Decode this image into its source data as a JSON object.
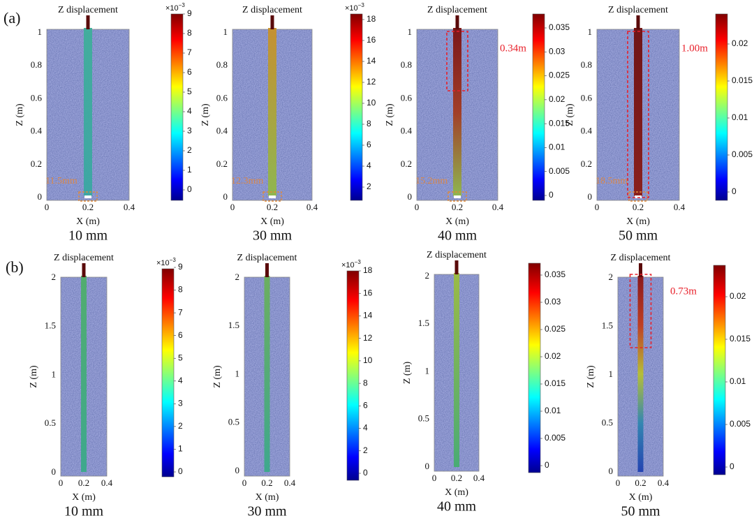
{
  "figure": {
    "rows": [
      {
        "label": "(a)",
        "panels": [
          {
            "title": "Z displacement",
            "y_label": "Z (m)",
            "x_label": "X (m)",
            "caption": "10 mm",
            "y_ticks": [
              "0",
              "0.2",
              "0.4",
              "0.6",
              "0.8",
              "1"
            ],
            "x_ticks": [
              "0",
              "0.2",
              "0.4"
            ],
            "colorbar_scale": {
              "base": "×10",
              "exponent": "−3"
            },
            "colorbar_ticks": [
              "0",
              "1",
              "2",
              "3",
              "4",
              "5",
              "6",
              "7",
              "8",
              "9"
            ],
            "displacement_label": "11.5mm"
          },
          {
            "title": "Z displacement",
            "y_label": "Z (m)",
            "x_label": "X (m)",
            "caption": "30 mm",
            "y_ticks": [
              "0",
              "0.2",
              "0.4",
              "0.6",
              "0.8",
              "1"
            ],
            "x_ticks": [
              "0",
              "0.2",
              "0.4"
            ],
            "colorbar_scale": {
              "base": "×10",
              "exponent": "−3"
            },
            "colorbar_ticks": [
              "2",
              "4",
              "6",
              "8",
              "10",
              "12",
              "14",
              "16",
              "18"
            ],
            "displacement_label": "12.3mm"
          },
          {
            "title": "Z displacement",
            "y_label": "Z (m)",
            "x_label": "X (m)",
            "caption": "40 mm",
            "y_ticks": [
              "0",
              "0.2",
              "0.4",
              "0.6",
              "0.8",
              "1"
            ],
            "x_ticks": [
              "0",
              "0.2",
              "0.4"
            ],
            "colorbar_ticks": [
              "0",
              "0.005",
              "0.01",
              "0.015",
              "0.02",
              "0.025",
              "0.03",
              "0.035"
            ],
            "displacement_label": "15.2mm",
            "zone_label": "0.34m"
          },
          {
            "title": "Z displacement",
            "y_label": "Z (m)",
            "x_label": "X (m)",
            "caption": "50 mm",
            "y_ticks": [
              "0",
              "0.2",
              "0.4",
              "0.6",
              "0.8",
              "1"
            ],
            "x_ticks": [
              "0",
              "0.2",
              "0.4"
            ],
            "colorbar_ticks": [
              "0",
              "0.005",
              "0.01",
              "0.015",
              "0.02"
            ],
            "displacement_label": "18.5mm",
            "zone_label": "1.00m"
          }
        ]
      },
      {
        "label": "(b)",
        "panels": [
          {
            "title": "Z displacement",
            "y_label": "Z (m)",
            "x_label": "X (m)",
            "caption": "10 mm",
            "y_ticks": [
              "0",
              "0.5",
              "1",
              "1.5",
              "2"
            ],
            "x_ticks": [
              "0",
              "0.2",
              "0.4"
            ],
            "colorbar_scale": {
              "base": "×10",
              "exponent": "−3"
            },
            "colorbar_ticks": [
              "0",
              "1",
              "2",
              "3",
              "4",
              "5",
              "6",
              "7",
              "8",
              "9"
            ]
          },
          {
            "title": "Z displacement",
            "y_label": "Z (m)",
            "x_label": "X (m)",
            "caption": "30 mm",
            "y_ticks": [
              "0",
              "0.5",
              "1",
              "1.5",
              "2"
            ],
            "x_ticks": [
              "0",
              "0.2",
              "0.4"
            ],
            "colorbar_scale": {
              "base": "×10",
              "exponent": "−3"
            },
            "colorbar_ticks": [
              "0",
              "2",
              "4",
              "6",
              "8",
              "10",
              "12",
              "14",
              "16",
              "18"
            ]
          },
          {
            "title": "Z displacement",
            "y_label": "Z (m)",
            "x_label": "X (m)",
            "caption": "40 mm",
            "y_ticks": [
              "0",
              "0.5",
              "1",
              "1.5",
              "2"
            ],
            "x_ticks": [
              "0",
              "0.2",
              "0.4"
            ],
            "colorbar_ticks": [
              "0",
              "0.005",
              "0.01",
              "0.015",
              "0.02",
              "0.025",
              "0.03",
              "0.035"
            ]
          },
          {
            "title": "Z displacement",
            "y_label": "Z (m)",
            "x_label": "X (m)",
            "caption": "50 mm",
            "y_ticks": [
              "0",
              "0.5",
              "1",
              "1.5",
              "2"
            ],
            "x_ticks": [
              "0",
              "0.2",
              "0.4"
            ],
            "colorbar_ticks": [
              "0",
              "0.005",
              "0.01",
              "0.015",
              "0.02"
            ],
            "zone_label": "0.73m"
          }
        ]
      }
    ]
  }
}
